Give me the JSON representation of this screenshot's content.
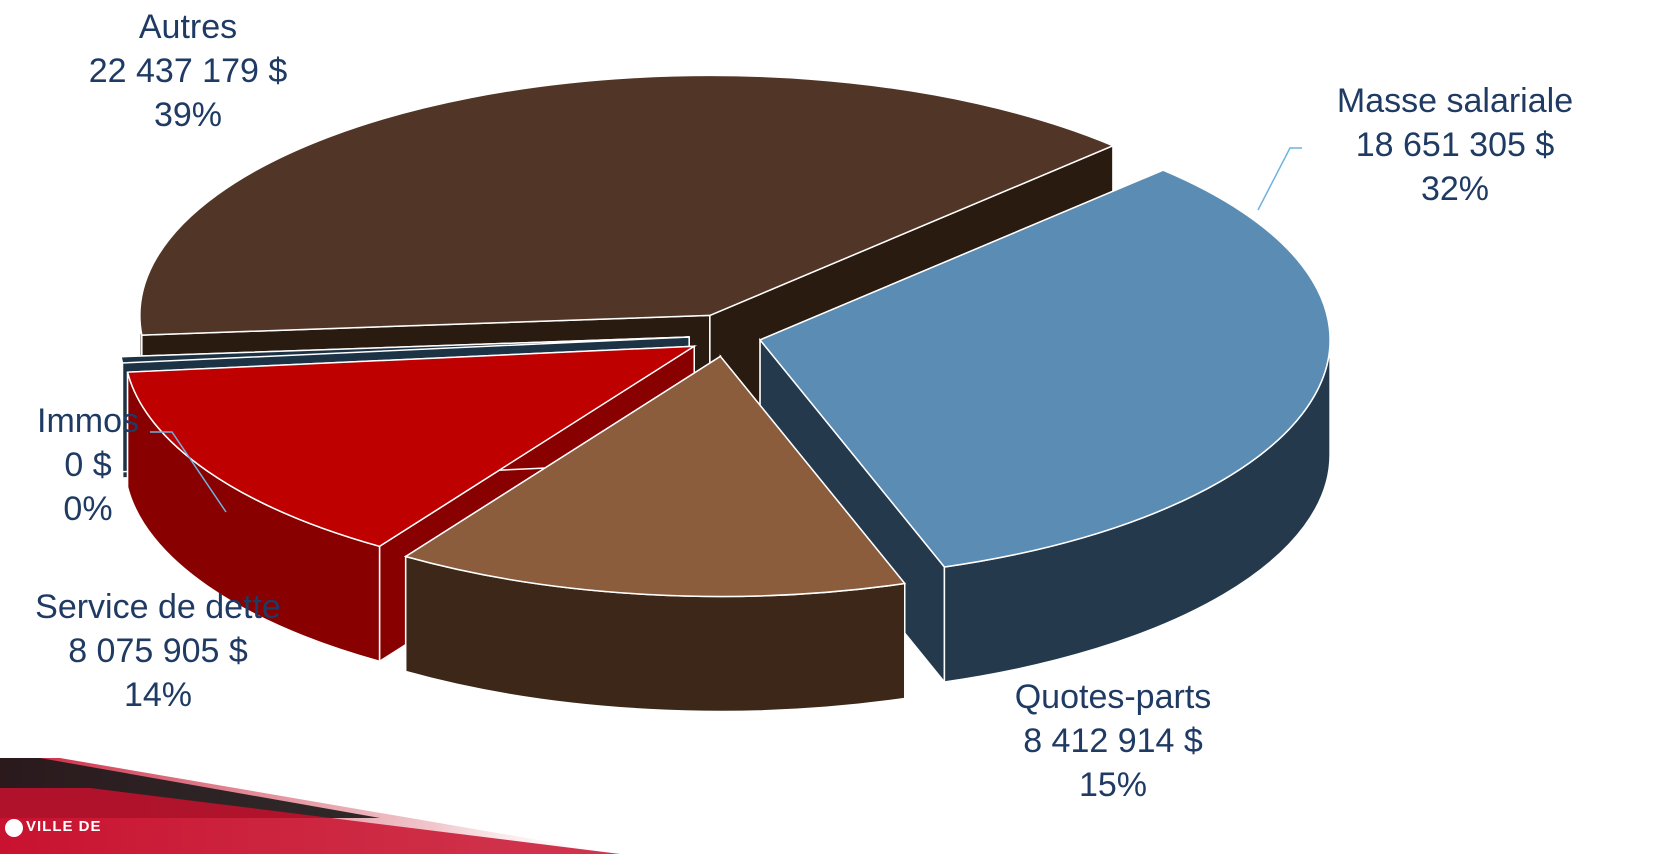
{
  "chart_data": {
    "type": "pie",
    "title": "",
    "slices": [
      {
        "label": "Masse salariale",
        "value": 18651305,
        "value_text": "18 651 305 $",
        "percent": 32,
        "percent_text": "32%",
        "color": "#5b8db4",
        "side_color": "#243a4c"
      },
      {
        "label": "Quotes-parts",
        "value": 8412914,
        "value_text": "8 412 914 $",
        "percent": 15,
        "percent_text": "15%",
        "color": "#8b5d3c",
        "side_color": "#3c2719"
      },
      {
        "label": "Service de dette",
        "value": 8075905,
        "value_text": "8 075 905 $",
        "percent": 14,
        "percent_text": "14%",
        "color": "#bf0000",
        "side_color": "#880000"
      },
      {
        "label": "Immos",
        "value": 0,
        "value_text": "0 $",
        "percent": 0,
        "percent_text": "0%",
        "color": "#1c3346",
        "side_color": "#1c3346"
      },
      {
        "label": "Autres",
        "value": 22437179,
        "value_text": "22 437 179 $",
        "percent": 39,
        "percent_text": "39%",
        "color": "#513627",
        "side_color": "#2a1b11"
      }
    ],
    "legend": "none",
    "view": "3d-exploded"
  },
  "brand": {
    "line1": "VILLE DE",
    "colors": {
      "stripe_red": "#c8102e",
      "stripe_dark": "#1a1a1a"
    }
  }
}
